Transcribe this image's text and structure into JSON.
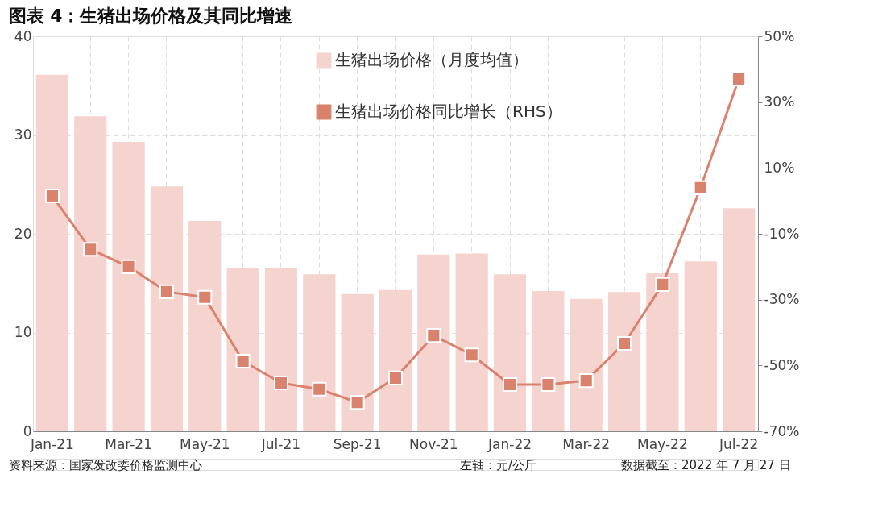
{
  "chart_data": {
    "type": "bar",
    "title": "图表 4：生猪出场价格及其同比增速",
    "categories": [
      "Jan-21",
      null,
      "Mar-21",
      null,
      "May-21",
      null,
      "Jul-21",
      null,
      "Sep-21",
      null,
      "Nov-21",
      null,
      "Jan-22",
      null,
      "Mar-22",
      null,
      "May-22",
      null,
      "Jul-22"
    ],
    "series": [
      {
        "name": "生猪出场价格（月度均值）",
        "color": "#f5d3cf",
        "values": [
          36.1,
          31.9,
          29.3,
          24.8,
          21.3,
          16.5,
          16.5,
          15.9,
          13.9,
          14.3,
          17.9,
          18.0,
          15.9,
          14.2,
          13.4,
          14.1,
          16.0,
          17.2,
          22.6
        ]
      },
      {
        "name": "生猪出场价格同比增长（RHS）",
        "type": "line",
        "axis": "y2",
        "color": "#d9826e",
        "marker": "square",
        "values": [
          1.5,
          -14.7,
          -20.0,
          -27.6,
          -29.3,
          -48.7,
          -55.3,
          -57.2,
          -61.2,
          -53.8,
          -40.9,
          -46.8,
          -55.8,
          -55.8,
          -54.6,
          -43.3,
          -25.4,
          4.0,
          37.0
        ]
      }
    ],
    "ylim": [
      0,
      40
    ],
    "yticks": [
      0,
      10,
      20,
      30,
      40
    ],
    "y2lim": [
      -70,
      50
    ],
    "y2ticks": [
      {
        "value": -70,
        "label": "-70%"
      },
      {
        "value": -50,
        "label": "-50%"
      },
      {
        "value": -30,
        "label": "-30%"
      },
      {
        "value": -10,
        "label": "-10%"
      },
      {
        "value": 10,
        "label": "10%"
      },
      {
        "value": 30,
        "label": "30%"
      },
      {
        "value": 50,
        "label": "50%"
      }
    ],
    "grid": true,
    "legend": "top",
    "annotations": [
      "资料来源：国家发改委价格监测中心",
      "左轴：元/公斤",
      "数据截至：2022 年 7 月 27 日"
    ]
  }
}
